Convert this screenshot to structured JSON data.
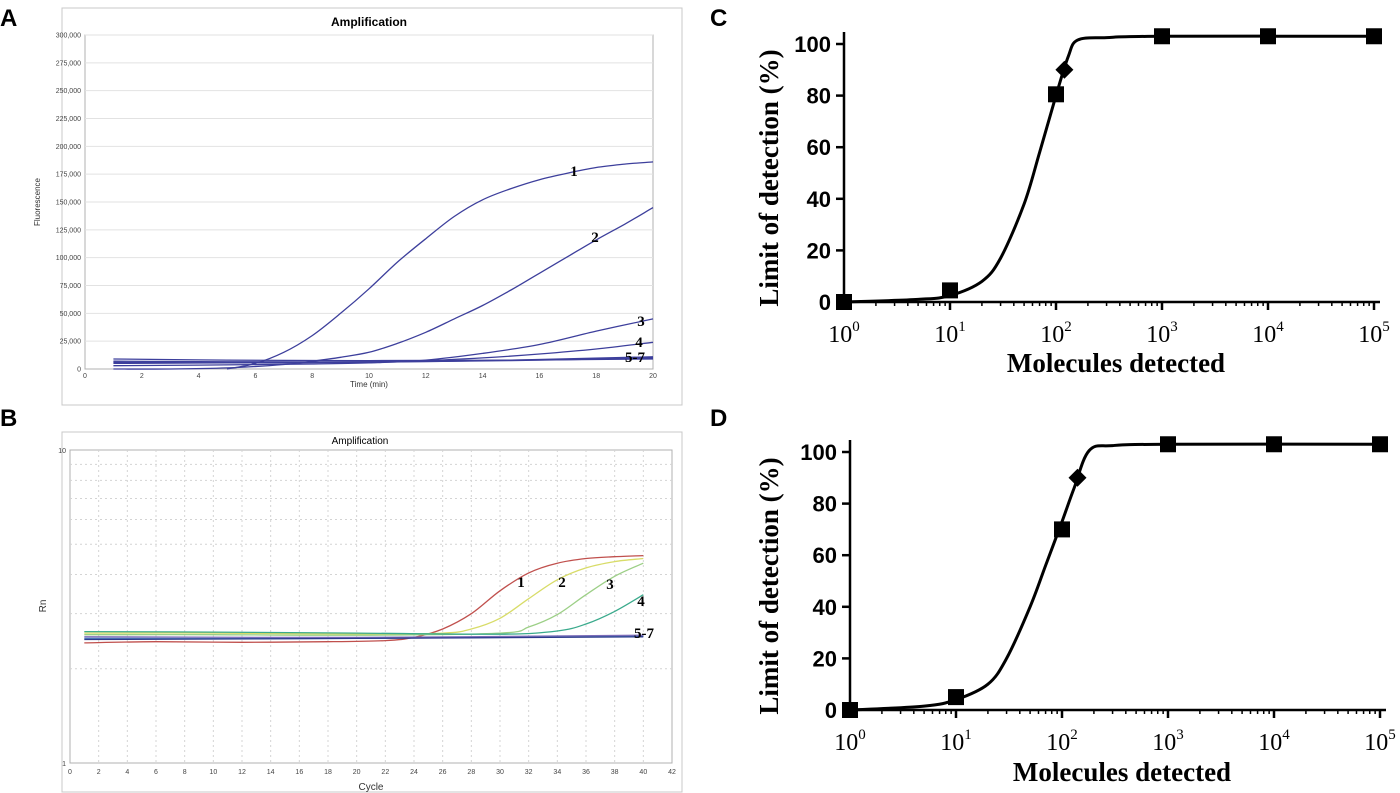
{
  "panel_labels": [
    "A",
    "B",
    "C",
    "D"
  ],
  "chart_data": [
    {
      "panel": "A",
      "type": "line",
      "title": "Amplification",
      "xlabel": "Time (min)",
      "ylabel": "Fluorescence",
      "xlim": [
        0,
        20
      ],
      "ylim": [
        0,
        300000
      ],
      "x_ticks": [
        0,
        2,
        4,
        6,
        8,
        10,
        12,
        14,
        16,
        18,
        20
      ],
      "y_ticks": [
        0,
        25000,
        50000,
        75000,
        100000,
        125000,
        150000,
        175000,
        200000,
        225000,
        250000,
        275000,
        300000
      ],
      "y_tick_labels": [
        "0",
        "25,000",
        "50,000",
        "75,000",
        "100,000",
        "125,000",
        "150,000",
        "175,000",
        "200,000",
        "225,000",
        "250,000",
        "275,000",
        "300,000"
      ],
      "curve_labels": [
        "1",
        "2",
        "3",
        "4",
        "5-7"
      ],
      "series": [
        {
          "name": "1",
          "color": "#3d3f9c",
          "x": [
            5,
            6,
            7,
            8,
            9,
            10,
            11,
            12,
            13,
            14,
            15,
            16,
            17,
            18,
            19,
            20
          ],
          "y": [
            0,
            5000,
            15000,
            30000,
            50000,
            72000,
            96000,
            117000,
            137000,
            152000,
            162000,
            170000,
            176000,
            181000,
            184000,
            186000
          ]
        },
        {
          "name": "2",
          "color": "#3d3f9c",
          "x": [
            1,
            3,
            5,
            7,
            8,
            9,
            10,
            11,
            12,
            13,
            14,
            15,
            16,
            17,
            18,
            19,
            20
          ],
          "y": [
            0,
            0,
            1000,
            4000,
            7000,
            10500,
            15000,
            23000,
            33000,
            45000,
            57000,
            71000,
            86000,
            101000,
            116000,
            130000,
            145000
          ]
        },
        {
          "name": "3",
          "color": "#3d3f9c",
          "x": [
            1,
            4,
            8,
            10,
            12,
            14,
            16,
            18,
            20
          ],
          "y": [
            3000,
            3500,
            4500,
            5500,
            8000,
            14000,
            22000,
            34000,
            45000
          ]
        },
        {
          "name": "4",
          "color": "#3d3f9c",
          "x": [
            1,
            6,
            10,
            12,
            14,
            16,
            18,
            20
          ],
          "y": [
            6000,
            5500,
            6500,
            7500,
            10000,
            13500,
            18000,
            24000
          ]
        },
        {
          "name": "5",
          "color": "#3d3f9c",
          "x": [
            1,
            5,
            10,
            15,
            20
          ],
          "y": [
            9000,
            8000,
            7500,
            8000,
            9000
          ]
        },
        {
          "name": "6",
          "color": "#3d3f9c",
          "x": [
            1,
            5,
            10,
            15,
            20
          ],
          "y": [
            7000,
            6500,
            6500,
            7500,
            10000
          ]
        },
        {
          "name": "7",
          "color": "#3d3f9c",
          "x": [
            1,
            5,
            10,
            15,
            20
          ],
          "y": [
            5000,
            5500,
            6000,
            8000,
            11000
          ]
        }
      ]
    },
    {
      "panel": "B",
      "type": "line",
      "title": "Amplification",
      "xlabel": "Cycle",
      "ylabel": "Rn",
      "yscale": "log",
      "xlim": [
        0,
        42
      ],
      "ylim": [
        1,
        10
      ],
      "x_ticks": [
        0,
        2,
        4,
        6,
        8,
        10,
        12,
        14,
        16,
        18,
        20,
        22,
        24,
        26,
        28,
        30,
        32,
        34,
        36,
        38,
        40,
        42
      ],
      "y_tick_labels": [
        "1",
        "10"
      ],
      "curve_labels": [
        "1",
        "2",
        "3",
        "4",
        "5-7"
      ],
      "series": [
        {
          "name": "1",
          "color": "#c0504d",
          "x": [
            1,
            6,
            12,
            18,
            22,
            24,
            26,
            28,
            30,
            32,
            34,
            36,
            38,
            40
          ],
          "y": [
            2.42,
            2.44,
            2.43,
            2.44,
            2.46,
            2.52,
            2.68,
            3.0,
            3.55,
            4.05,
            4.35,
            4.5,
            4.56,
            4.6
          ]
        },
        {
          "name": "2",
          "color": "#d8dc68",
          "x": [
            1,
            10,
            20,
            26,
            28,
            30,
            32,
            34,
            36,
            38,
            40
          ],
          "y": [
            2.6,
            2.6,
            2.58,
            2.6,
            2.68,
            2.9,
            3.35,
            3.85,
            4.2,
            4.4,
            4.5
          ]
        },
        {
          "name": "3",
          "color": "#9ccf86",
          "x": [
            1,
            10,
            20,
            30,
            32,
            34,
            36,
            38,
            40
          ],
          "y": [
            2.57,
            2.57,
            2.56,
            2.6,
            2.72,
            2.98,
            3.45,
            3.95,
            4.35
          ]
        },
        {
          "name": "4",
          "color": "#3aaa8c",
          "x": [
            1,
            10,
            20,
            30,
            34,
            36,
            38,
            40
          ],
          "y": [
            2.63,
            2.62,
            2.6,
            2.58,
            2.64,
            2.78,
            3.05,
            3.45
          ]
        },
        {
          "name": "5",
          "color": "#4f81bd",
          "x": [
            1,
            20,
            40
          ],
          "y": [
            2.5,
            2.5,
            2.55
          ]
        },
        {
          "name": "6",
          "color": "#7c6bb8",
          "x": [
            1,
            20,
            40
          ],
          "y": [
            2.53,
            2.52,
            2.56
          ]
        },
        {
          "name": "7",
          "color": "#2d3a8c",
          "x": [
            1,
            20,
            40
          ],
          "y": [
            2.48,
            2.5,
            2.53
          ]
        }
      ]
    },
    {
      "panel": "C",
      "type": "scatter",
      "xlabel": "Molecules detected",
      "ylabel": "Limit of detection (%)",
      "xscale": "log",
      "xlim": [
        1,
        100000
      ],
      "ylim": [
        0,
        100
      ],
      "y_ticks": [
        0,
        20,
        40,
        60,
        80,
        100
      ],
      "x_tick_base": "10",
      "x_tick_exponents": [
        "0",
        "1",
        "2",
        "3",
        "4",
        "5"
      ],
      "points": [
        {
          "x": 1,
          "y": 0,
          "marker": "square"
        },
        {
          "x": 10,
          "y": 4.5,
          "marker": "square"
        },
        {
          "x": 100,
          "y": 80.5,
          "marker": "square"
        },
        {
          "x": 120,
          "y": 90,
          "marker": "diamond"
        },
        {
          "x": 1000,
          "y": 103,
          "marker": "square"
        },
        {
          "x": 10000,
          "y": 103,
          "marker": "square"
        },
        {
          "x": 100000,
          "y": 103,
          "marker": "square"
        }
      ],
      "fit_curve": {
        "x": [
          1,
          5,
          10,
          20,
          30,
          50,
          70,
          100,
          130,
          160,
          300,
          1000,
          100000
        ],
        "y": [
          0,
          1,
          2.5,
          8,
          17,
          38,
          58,
          80,
          95,
          101.5,
          102.5,
          103,
          103
        ]
      }
    },
    {
      "panel": "D",
      "type": "scatter",
      "xlabel": "Molecules detected",
      "ylabel": "Limit of detection (%)",
      "xscale": "log",
      "xlim": [
        1,
        100000
      ],
      "ylim": [
        0,
        100
      ],
      "y_ticks": [
        0,
        20,
        40,
        60,
        80,
        100
      ],
      "x_tick_base": "10",
      "x_tick_exponents": [
        "0",
        "1",
        "2",
        "3",
        "4",
        "5"
      ],
      "points": [
        {
          "x": 1,
          "y": 0,
          "marker": "square"
        },
        {
          "x": 10,
          "y": 5,
          "marker": "square"
        },
        {
          "x": 100,
          "y": 70,
          "marker": "square"
        },
        {
          "x": 140,
          "y": 90,
          "marker": "diamond"
        },
        {
          "x": 1000,
          "y": 103,
          "marker": "square"
        },
        {
          "x": 10000,
          "y": 103,
          "marker": "square"
        },
        {
          "x": 100000,
          "y": 103,
          "marker": "square"
        }
      ],
      "fit_curve": {
        "x": [
          1,
          5,
          10,
          20,
          30,
          50,
          70,
          100,
          130,
          180,
          300,
          1000,
          100000
        ],
        "y": [
          0,
          1.5,
          4,
          10,
          20,
          40,
          56,
          73,
          86,
          100.5,
          102.5,
          103,
          103
        ]
      }
    }
  ]
}
